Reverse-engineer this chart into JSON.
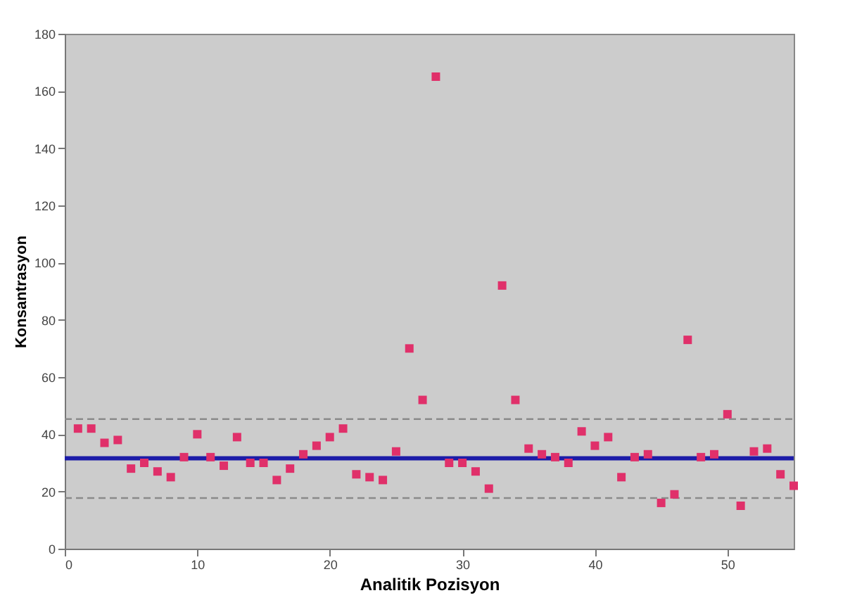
{
  "chart_data": {
    "type": "scatter",
    "xlabel": "Analitik Pozisyon",
    "ylabel": "Konsantrasyon",
    "x": [
      1,
      2,
      3,
      4,
      5,
      6,
      7,
      8,
      9,
      10,
      11,
      12,
      13,
      14,
      15,
      16,
      17,
      18,
      19,
      20,
      21,
      22,
      23,
      24,
      25,
      26,
      27,
      28,
      29,
      30,
      31,
      32,
      33,
      34,
      35,
      36,
      37,
      38,
      39,
      40,
      41,
      42,
      43,
      44,
      45,
      46,
      47,
      48,
      49,
      50,
      51,
      52,
      53,
      54,
      55
    ],
    "series": [
      {
        "color": "#e0306a",
        "values": [
          42,
          42,
          37,
          38,
          28,
          30,
          27,
          25,
          32,
          40,
          32,
          29,
          39,
          30,
          30,
          24,
          28,
          33,
          36,
          39,
          42,
          26,
          25,
          24,
          34,
          70,
          52,
          165,
          30,
          30,
          27,
          21,
          92,
          52,
          35,
          33,
          32,
          30,
          41,
          36,
          39,
          25,
          32,
          33,
          16,
          19,
          73,
          32,
          33,
          47,
          15,
          34,
          35,
          26,
          22
        ]
      }
    ],
    "marker": "square",
    "xlim": [
      0,
      55
    ],
    "xticks": [
      0,
      10,
      20,
      30,
      40,
      50
    ],
    "ylim": [
      0,
      180
    ],
    "yticks": [
      0,
      20,
      40,
      60,
      80,
      100,
      120,
      140,
      160,
      180
    ],
    "grid": false,
    "ref_lines": [
      {
        "axis": "y",
        "value": 31.6,
        "color": "#1c1ca8",
        "line_style": "solid"
      },
      {
        "axis": "y",
        "value": 45.3,
        "color": "#8a8a8a",
        "line_style": "dashed"
      },
      {
        "axis": "y",
        "value": 17.7,
        "color": "#8a8a8a",
        "line_style": "dashed"
      }
    ]
  }
}
